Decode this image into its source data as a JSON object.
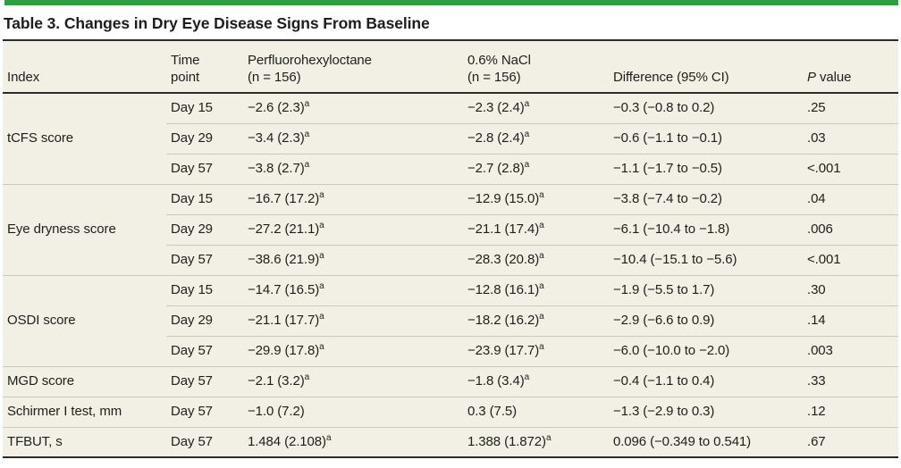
{
  "colors": {
    "accent_green": "#2E9E40",
    "table_bg": "#F2F0E4",
    "row_sep": "#CBC9BF",
    "rule_dark": "#2B2B2B",
    "text_dark": "#1E1E1E"
  },
  "title": "Table 3. Changes in Dry Eye Disease Signs From Baseline",
  "table": {
    "headers": {
      "index": "Index",
      "time": "Time\npoint",
      "drug": "Perfluorohexyloctane\n(n = 156)",
      "nacl": "0.6% NaCl\n(n = 156)",
      "difference": "Difference (95% CI)",
      "p_italic": "P",
      "p_rest": "value"
    },
    "footnote_marker": "a",
    "rows": [
      {
        "index": "tCFS score",
        "index_rowspan": 3,
        "time": "Day 15",
        "drug": "−2.6 (2.3)",
        "drug_sup": "a",
        "nacl": "−2.3 (2.4)",
        "nacl_sup": "a",
        "diff": "−0.3 (−0.8 to 0.2)",
        "p": ".25"
      },
      {
        "time": "Day 29",
        "drug": "−3.4 (2.3)",
        "drug_sup": "a",
        "nacl": "−2.8 (2.4)",
        "nacl_sup": "a",
        "diff": "−0.6 (−1.1 to −0.1)",
        "p": ".03"
      },
      {
        "time": "Day 57",
        "drug": "−3.8 (2.7)",
        "drug_sup": "a",
        "nacl": "−2.7 (2.8)",
        "nacl_sup": "a",
        "diff": "−1.1 (−1.7 to −0.5)",
        "p": "<.001"
      },
      {
        "index": "Eye dryness score",
        "index_rowspan": 3,
        "time": "Day 15",
        "drug": "−16.7 (17.2)",
        "drug_sup": "a",
        "nacl": "−12.9 (15.0)",
        "nacl_sup": "a",
        "diff": "−3.8 (−7.4 to −0.2)",
        "p": ".04"
      },
      {
        "time": "Day 29",
        "drug": "−27.2 (21.1)",
        "drug_sup": "a",
        "nacl": "−21.1 (17.4)",
        "nacl_sup": "a",
        "diff": "−6.1 (−10.4 to −1.8)",
        "p": ".006"
      },
      {
        "time": "Day 57",
        "drug": "−38.6 (21.9)",
        "drug_sup": "a",
        "nacl": "−28.3 (20.8)",
        "nacl_sup": "a",
        "diff": "−10.4 (−15.1 to −5.6)",
        "p": "<.001"
      },
      {
        "index": "OSDI score",
        "index_rowspan": 3,
        "time": "Day 15",
        "drug": "−14.7 (16.5)",
        "drug_sup": "a",
        "nacl": "−12.8 (16.1)",
        "nacl_sup": "a",
        "diff": "−1.9 (−5.5 to 1.7)",
        "p": ".30"
      },
      {
        "time": "Day 29",
        "drug": "−21.1 (17.7)",
        "drug_sup": "a",
        "nacl": "−18.2 (16.2)",
        "nacl_sup": "a",
        "diff": "−2.9 (−6.6 to 0.9)",
        "p": ".14"
      },
      {
        "time": "Day 57",
        "drug": "−29.9 (17.8)",
        "drug_sup": "a",
        "nacl": "−23.9 (17.7)",
        "nacl_sup": "a",
        "diff": "−6.0 (−10.0 to −2.0)",
        "p": ".003"
      },
      {
        "index": "MGD score",
        "index_rowspan": 1,
        "time": "Day 57",
        "drug": "−2.1 (3.2)",
        "drug_sup": "a",
        "nacl": "−1.8 (3.4)",
        "nacl_sup": "a",
        "diff": "−0.4 (−1.1 to 0.4)",
        "p": ".33"
      },
      {
        "index": "Schirmer I test, mm",
        "index_rowspan": 1,
        "time": "Day 57",
        "drug": "−1.0 (7.2)",
        "nacl": "0.3 (7.5)",
        "diff": "−1.3 (−2.9 to 0.3)",
        "p": ".12"
      },
      {
        "index": "TFBUT, s",
        "index_rowspan": 1,
        "time": "Day 57",
        "drug": "1.484 (2.108)",
        "drug_sup": "a",
        "nacl": "1.388 (1.872)",
        "nacl_sup": "a",
        "diff": "0.096 (−0.349 to 0.541)",
        "p": ".67"
      }
    ]
  }
}
